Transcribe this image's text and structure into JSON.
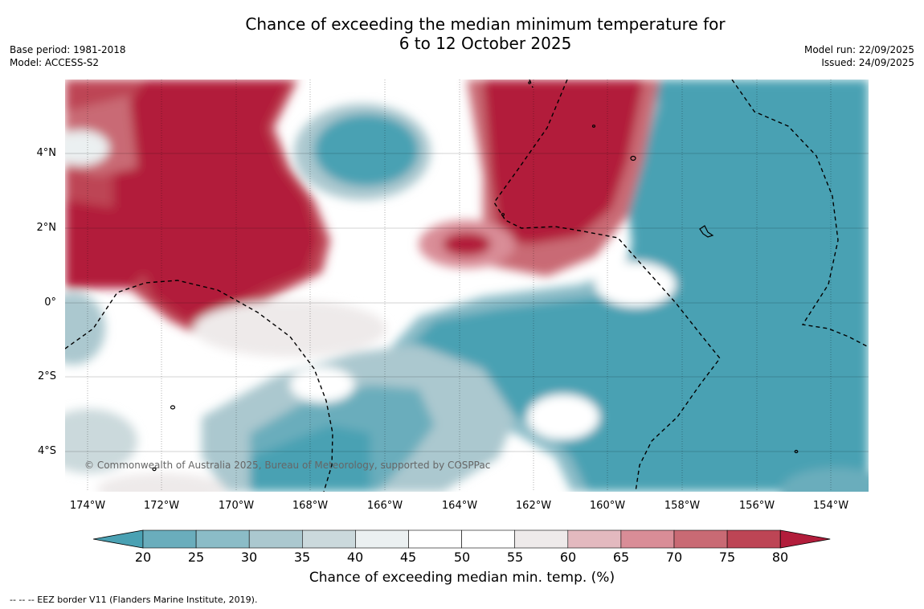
{
  "title": {
    "line1": "Chance of exceeding the median minimum temperature for",
    "line2": "6 to 12 October 2025"
  },
  "meta_left": {
    "base_period": "Base period: 1981-2018",
    "model": "Model: ACCESS-S2"
  },
  "meta_right": {
    "model_run": "Model run: 22/09/2025",
    "issued": "Issued: 24/09/2025"
  },
  "map": {
    "copyright": "© Commonwealth of Australia 2025, Bureau of Meteorology, supported by COSPPac",
    "lat_labels": [
      "4°N",
      "2°N",
      "0°",
      "2°S",
      "4°S"
    ],
    "lon_labels": [
      "174°W",
      "172°W",
      "170°W",
      "168°W",
      "166°W",
      "164°W",
      "162°W",
      "160°W",
      "158°W",
      "156°W",
      "154°W"
    ]
  },
  "colorbar": {
    "tick_labels": [
      "20",
      "25",
      "30",
      "35",
      "40",
      "45",
      "50",
      "55",
      "60",
      "65",
      "70",
      "75",
      "80"
    ],
    "colors": [
      "#4aa1b3",
      "#6aadbc",
      "#8bbcc7",
      "#abc8cf",
      "#cbd9dc",
      "#ebf0f1",
      "#ffffff",
      "#ffffff",
      "#eeeaea",
      "#e3b9bf",
      "#d98d97",
      "#c96a74",
      "#bd4555",
      "#b21d3b"
    ],
    "title": "Chance of exceeding median min. temp. (%)"
  },
  "footer": "--  --  -- EEZ border V11 (Flanders Marine Institute, 2019)."
}
